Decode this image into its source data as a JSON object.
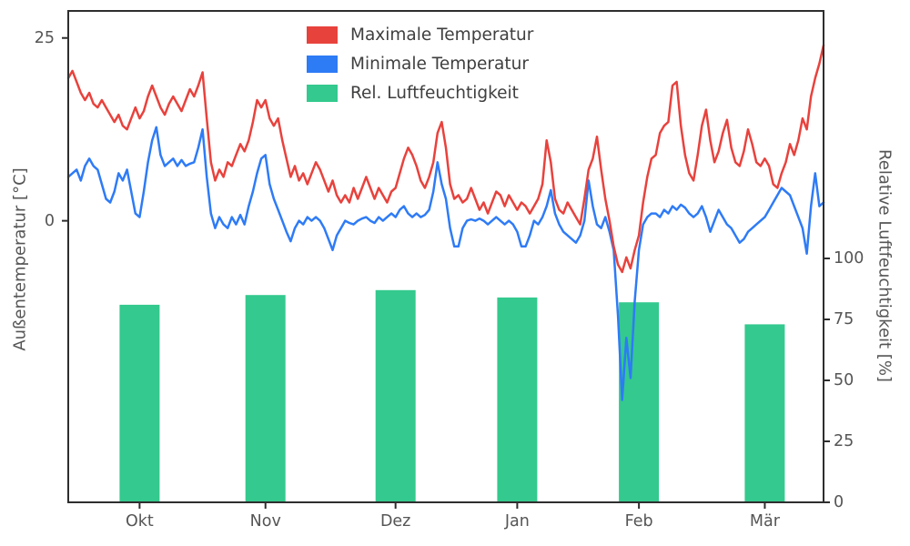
{
  "figure": {
    "background": "#ffffff",
    "spine_color": "#2e2e2e",
    "text_color": "#555555"
  },
  "chart_data": {
    "type": "combo-line-bar",
    "title": "",
    "grid": false,
    "legend_position": "upper-center",
    "legend": [
      {
        "label": "Maximale Temperatur",
        "color": "#e8423d",
        "kind": "patch"
      },
      {
        "label": "Minimale Temperatur",
        "color": "#2e7bf6",
        "kind": "patch"
      },
      {
        "label": "Rel. Luftfeuchtigkeit",
        "color": "#34c98e",
        "kind": "patch"
      }
    ],
    "x_axis": {
      "tick_labels": [
        "Okt",
        "Nov",
        "Dez",
        "Jan",
        "Feb",
        "Mär"
      ],
      "tick_days": [
        17,
        47,
        78,
        107,
        136,
        166
      ],
      "total_days": 180
    },
    "left_axis": {
      "label": "Außentemperatur [°C]",
      "ticks": [
        0,
        25
      ],
      "range": [
        -38.5,
        28.7
      ]
    },
    "right_axis": {
      "label": "Relative Luftfeuchtigkeit [%]",
      "ticks": [
        0,
        25,
        50,
        75,
        100
      ],
      "range": [
        0,
        201.5
      ]
    },
    "series": [
      {
        "name": "Maximale Temperatur",
        "type": "line",
        "axis": "left",
        "color": "#e8423d",
        "values": [
          19.5,
          20.5,
          19,
          17.5,
          16.5,
          17.5,
          16,
          15.5,
          16.5,
          15.5,
          14.5,
          13.5,
          14.5,
          13,
          12.5,
          14,
          15.5,
          14,
          15,
          17,
          18.5,
          17,
          15.5,
          14.5,
          16,
          17,
          16,
          15,
          16.5,
          18,
          17,
          18.5,
          20.3,
          14,
          8,
          5.5,
          7,
          6,
          8,
          7.5,
          9,
          10.5,
          9.5,
          11,
          13.5,
          16.5,
          15.5,
          16.5,
          14,
          13,
          14,
          11,
          8.5,
          6,
          7.5,
          5.5,
          6.5,
          5,
          6.5,
          8,
          7,
          5.5,
          4,
          5.5,
          3.5,
          2.5,
          3.5,
          2.5,
          4.5,
          3,
          4.5,
          6,
          4.5,
          3,
          4.5,
          3.5,
          2.5,
          4,
          4.5,
          6.5,
          8.5,
          10,
          9,
          7.5,
          5.5,
          4.5,
          6,
          8,
          12,
          13.5,
          10,
          5,
          3,
          3.5,
          2.5,
          3,
          4.5,
          3,
          1.5,
          2.5,
          1,
          2.5,
          4,
          3.5,
          2,
          3.5,
          2.5,
          1.5,
          2.5,
          2,
          1,
          2,
          3,
          5,
          11,
          8,
          3,
          1.5,
          1,
          2.5,
          1.5,
          0.5,
          -0.5,
          3,
          7,
          8.5,
          11.5,
          7,
          3,
          0,
          -3.5,
          -6,
          -7,
          -5,
          -6.5,
          -4,
          -2,
          2.5,
          6,
          8.5,
          9,
          12,
          13,
          13.5,
          18.5,
          19,
          13,
          9,
          6.5,
          5.5,
          9,
          13,
          15.2,
          11,
          8,
          9.5,
          12,
          13.8,
          10,
          8,
          7.5,
          9.5,
          12.5,
          10.5,
          8,
          7.5,
          8.5,
          7.5,
          5,
          4.5,
          6.5,
          8,
          10.5,
          9,
          11,
          14,
          12.5,
          17,
          19.5,
          21.5,
          24
        ]
      },
      {
        "name": "Minimale Temperatur",
        "type": "line",
        "axis": "left",
        "color": "#2e7bf6",
        "values": [
          6,
          6.5,
          7,
          5.5,
          7.5,
          8.5,
          7.5,
          7,
          5,
          3,
          2.5,
          4,
          6.5,
          5.5,
          7,
          4,
          1,
          0.5,
          4,
          8,
          11,
          12.8,
          9,
          7.5,
          8,
          8.5,
          7.5,
          8.3,
          7.5,
          7.8,
          8,
          10,
          12.5,
          6,
          1,
          -1,
          0.5,
          -0.5,
          -1,
          0.5,
          -0.5,
          0.8,
          -0.5,
          2,
          4,
          6.5,
          8.5,
          9,
          5,
          3,
          1.5,
          0,
          -1.5,
          -2.8,
          -1,
          0,
          -0.5,
          0.5,
          0,
          0.5,
          0,
          -1,
          -2.5,
          -4,
          -2,
          -1,
          0,
          -0.3,
          -0.5,
          0,
          0.3,
          0.5,
          0,
          -0.3,
          0.5,
          0,
          0.5,
          1,
          0.5,
          1.5,
          2,
          1,
          0.5,
          1,
          0.5,
          0.8,
          1.5,
          4,
          8,
          5,
          3,
          -1,
          -3.5,
          -3.5,
          -1,
          0,
          0.2,
          0,
          0.3,
          0,
          -0.5,
          0,
          0.5,
          0,
          -0.5,
          0,
          -0.5,
          -1.5,
          -3.5,
          -3.5,
          -2,
          0,
          -0.5,
          0.5,
          2,
          4.2,
          1,
          -0.5,
          -1.5,
          -2,
          -2.5,
          -3,
          -2,
          0,
          5.5,
          2,
          -0.5,
          -1,
          0.5,
          -1.5,
          -4,
          -13,
          -24.5,
          -16,
          -21.5,
          -11,
          -4,
          -0.5,
          0.5,
          1,
          1,
          0.5,
          1.5,
          1,
          2,
          1.5,
          2.2,
          1.8,
          1,
          0.5,
          1,
          2,
          0.5,
          -1.5,
          0,
          1.5,
          0.5,
          -0.5,
          -1,
          -2,
          -3,
          -2.5,
          -1.5,
          -1,
          -0.5,
          0,
          0.5,
          1.5,
          2.5,
          3.5,
          4.5,
          4,
          3.5,
          2,
          0.5,
          -1,
          -4.5,
          2,
          6.5,
          2,
          2.5
        ]
      },
      {
        "name": "Rel. Luftfeuchtigkeit",
        "type": "bar",
        "axis": "right",
        "color": "#34c98e",
        "categories": [
          "Okt",
          "Nov",
          "Dez",
          "Jan",
          "Feb",
          "Mär"
        ],
        "values": [
          81,
          85,
          87,
          84,
          82,
          73
        ]
      }
    ]
  }
}
